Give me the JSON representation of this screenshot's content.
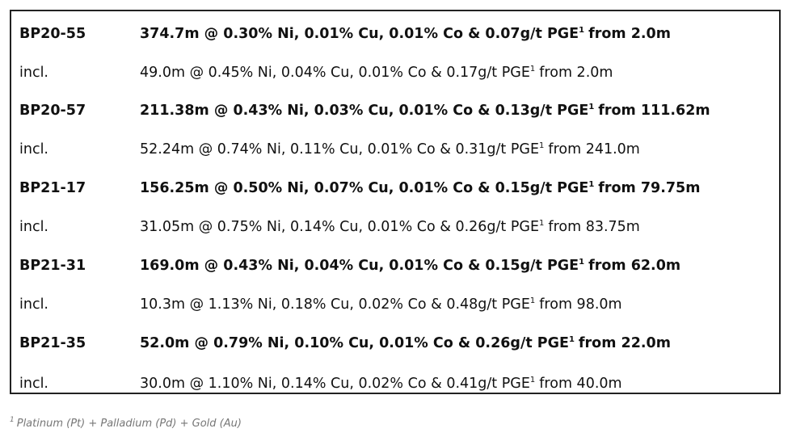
{
  "table": {
    "rows": [
      {
        "hole": "BP20-55",
        "intercept": "374.7m @ 0.30% Ni, 0.01% Cu, 0.01% Co & 0.07g/t PGE",
        "note": "1",
        "from": "from 2.0m",
        "bold": true
      },
      {
        "hole": "incl.",
        "intercept": "49.0m @ 0.45% Ni, 0.04% Cu, 0.01% Co & 0.17g/t PGE",
        "note": "1",
        "from": "from 2.0m",
        "bold": false
      },
      {
        "hole": "BP20-57",
        "intercept": "211.38m @ 0.43% Ni, 0.03% Cu, 0.01% Co & 0.13g/t PGE",
        "note": "1",
        "from": "from 111.62m",
        "bold": true
      },
      {
        "hole": "incl.",
        "intercept": "52.24m @ 0.74% Ni, 0.11% Cu, 0.01% Co & 0.31g/t PGE",
        "note": "1",
        "from": "from 241.0m",
        "bold": false
      },
      {
        "hole": "BP21-17",
        "intercept": "156.25m @ 0.50% Ni, 0.07% Cu, 0.01% Co & 0.15g/t PGE",
        "note": "1",
        "from": "from 79.75m",
        "bold": true
      },
      {
        "hole": "incl.",
        "intercept": "31.05m @ 0.75% Ni, 0.14% Cu, 0.01% Co & 0.26g/t PGE",
        "note": "1",
        "from": "from 83.75m",
        "bold": false
      },
      {
        "hole": "BP21-31",
        "intercept": "169.0m @ 0.43% Ni, 0.04% Cu, 0.01% Co & 0.15g/t PGE",
        "note": "1",
        "from": "from 62.0m",
        "bold": true
      },
      {
        "hole": "incl.",
        "intercept": "10.3m @ 1.13% Ni, 0.18% Cu, 0.02% Co & 0.48g/t PGE",
        "note": "1",
        "from": "from 98.0m",
        "bold": false
      },
      {
        "hole": "BP21-35",
        "intercept": "52.0m @ 0.79% Ni, 0.10% Cu, 0.01% Co & 0.26g/t PGE",
        "note": "1",
        "from": "from 22.0m",
        "bold": true
      },
      {
        "hole": "incl.",
        "intercept": "30.0m @ 1.10% Ni, 0.14% Cu, 0.02% Co & 0.41g/t PGE",
        "note": "1",
        "from": "from 40.0m",
        "bold": false
      }
    ]
  },
  "footnote": {
    "mark": "1",
    "text": "Platinum (Pt) + Palladium (Pd) + Gold (Au)"
  }
}
